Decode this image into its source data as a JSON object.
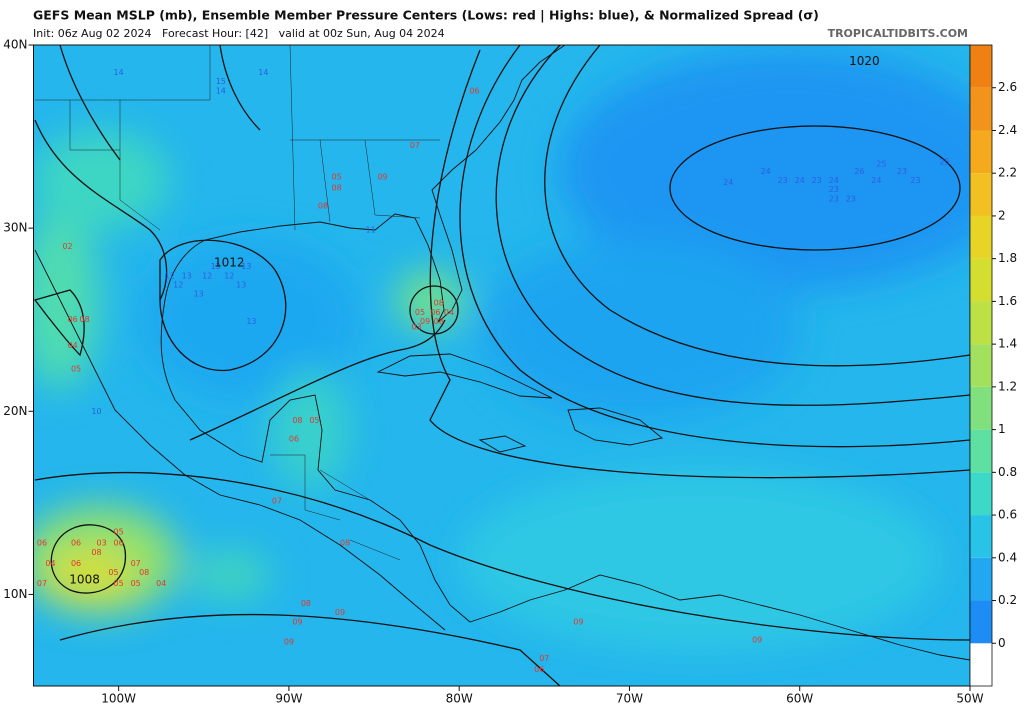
{
  "chart_data": {
    "type": "map",
    "title": "GEFS Mean MSLP (mb), Ensemble Member Pressure Centers (Lows: red | Highs: blue), & Normalized Spread (σ)",
    "subtitle": "Init: 06z Aug 02 2024   Forecast Hour: [42]   valid at 00z Sun, Aug 04 2024",
    "source": "TROPICALTIDBITS.COM",
    "xlim": [
      -105,
      -50
    ],
    "ylim": [
      5,
      40
    ],
    "xticks": [
      {
        "value": -100,
        "label": "100W"
      },
      {
        "value": -90,
        "label": "90W"
      },
      {
        "value": -80,
        "label": "80W"
      },
      {
        "value": -70,
        "label": "70W"
      },
      {
        "value": -60,
        "label": "60W"
      },
      {
        "value": -50,
        "label": "50W"
      }
    ],
    "yticks": [
      {
        "value": 10,
        "label": "10N"
      },
      {
        "value": 20,
        "label": "20N"
      },
      {
        "value": 30,
        "label": "30N"
      },
      {
        "value": 40,
        "label": "40N"
      }
    ],
    "colorbar": {
      "lim": [
        -0.2,
        2.8
      ],
      "ticks": [
        0,
        0.2,
        0.4,
        0.6,
        0.8,
        1,
        1.2,
        1.4,
        1.6,
        1.8,
        2,
        2.2,
        2.4,
        2.6
      ],
      "colors": [
        "#ffffff",
        "#1e8cf5",
        "#22a8f0",
        "#28c4e8",
        "#3cd8c8",
        "#5ee0a2",
        "#80e07e",
        "#a2e05e",
        "#bde044",
        "#d4de2e",
        "#e8d424",
        "#f2c020",
        "#f5aa1e",
        "#f3941a",
        "#ef8012"
      ]
    },
    "low_color": "#e2382c",
    "high_color": "#2c5fe0",
    "isobar_labels": [
      {
        "label": "1020",
        "lon": -56.2,
        "lat": 39.1
      },
      {
        "label": "1012",
        "lon": -93.5,
        "lat": 28.1
      },
      {
        "label": "1008",
        "lon": -102.0,
        "lat": 10.8
      }
    ],
    "centers": [
      {
        "label": "14",
        "kind": "high",
        "lon": -100.0,
        "lat": 38.5
      },
      {
        "label": "15",
        "kind": "high",
        "lon": -94.0,
        "lat": 38.0
      },
      {
        "label": "14",
        "kind": "high",
        "lon": -94.0,
        "lat": 37.5
      },
      {
        "label": "14",
        "kind": "high",
        "lon": -91.5,
        "lat": 38.5
      },
      {
        "label": "13",
        "kind": "high",
        "lon": -94.3,
        "lat": 27.9
      },
      {
        "label": "13",
        "kind": "high",
        "lon": -92.5,
        "lat": 27.9
      },
      {
        "label": "12",
        "kind": "high",
        "lon": -97.0,
        "lat": 27.4
      },
      {
        "label": "13",
        "kind": "high",
        "lon": -96.0,
        "lat": 27.4
      },
      {
        "label": "12",
        "kind": "high",
        "lon": -94.8,
        "lat": 27.4
      },
      {
        "label": "12",
        "kind": "high",
        "lon": -93.5,
        "lat": 27.4
      },
      {
        "label": "12",
        "kind": "high",
        "lon": -96.5,
        "lat": 26.9
      },
      {
        "label": "13",
        "kind": "high",
        "lon": -92.8,
        "lat": 26.9
      },
      {
        "label": "13",
        "kind": "high",
        "lon": -95.3,
        "lat": 26.4
      },
      {
        "label": "13",
        "kind": "high",
        "lon": -92.2,
        "lat": 24.9
      },
      {
        "label": "11",
        "kind": "high",
        "lon": -85.2,
        "lat": 29.9
      },
      {
        "label": "10",
        "kind": "high",
        "lon": -101.3,
        "lat": 20.0
      },
      {
        "label": "24",
        "kind": "high",
        "lon": -64.2,
        "lat": 32.5
      },
      {
        "label": "24",
        "kind": "high",
        "lon": -62.0,
        "lat": 33.1
      },
      {
        "label": "23",
        "kind": "high",
        "lon": -61.0,
        "lat": 32.6
      },
      {
        "label": "24",
        "kind": "high",
        "lon": -60.0,
        "lat": 32.6
      },
      {
        "label": "23",
        "kind": "high",
        "lon": -59.0,
        "lat": 32.6
      },
      {
        "label": "24",
        "kind": "high",
        "lon": -58.0,
        "lat": 32.6
      },
      {
        "label": "23",
        "kind": "high",
        "lon": -58.0,
        "lat": 32.1
      },
      {
        "label": "26",
        "kind": "high",
        "lon": -56.5,
        "lat": 33.1
      },
      {
        "label": "25",
        "kind": "high",
        "lon": -55.2,
        "lat": 33.5
      },
      {
        "label": "23",
        "kind": "high",
        "lon": -54.0,
        "lat": 33.1
      },
      {
        "label": "25",
        "kind": "high",
        "lon": -51.5,
        "lat": 33.6
      },
      {
        "label": "24",
        "kind": "high",
        "lon": -55.5,
        "lat": 32.6
      },
      {
        "label": "23",
        "kind": "high",
        "lon": -57.0,
        "lat": 31.6
      },
      {
        "label": "23",
        "kind": "high",
        "lon": -58.0,
        "lat": 31.6
      },
      {
        "label": "23",
        "kind": "high",
        "lon": -53.2,
        "lat": 32.6
      },
      {
        "label": "06",
        "kind": "low",
        "lon": -79.1,
        "lat": 37.5
      },
      {
        "label": "07",
        "kind": "low",
        "lon": -82.6,
        "lat": 34.5
      },
      {
        "label": "09",
        "kind": "low",
        "lon": -84.5,
        "lat": 32.8
      },
      {
        "label": "05",
        "kind": "low",
        "lon": -87.2,
        "lat": 32.8
      },
      {
        "label": "08",
        "kind": "low",
        "lon": -87.2,
        "lat": 32.2
      },
      {
        "label": "08",
        "kind": "low",
        "lon": -88.0,
        "lat": 31.2
      },
      {
        "label": "08",
        "kind": "low",
        "lon": -81.2,
        "lat": 25.9
      },
      {
        "label": "05",
        "kind": "low",
        "lon": -82.3,
        "lat": 25.4
      },
      {
        "label": "06",
        "kind": "low",
        "lon": -81.4,
        "lat": 25.4
      },
      {
        "label": "04",
        "kind": "low",
        "lon": -80.6,
        "lat": 25.4
      },
      {
        "label": "09",
        "kind": "low",
        "lon": -82.0,
        "lat": 24.9
      },
      {
        "label": "08",
        "kind": "low",
        "lon": -81.2,
        "lat": 24.9
      },
      {
        "label": "03",
        "kind": "low",
        "lon": -82.5,
        "lat": 24.6
      },
      {
        "label": "02",
        "kind": "low",
        "lon": -103.0,
        "lat": 29.0
      },
      {
        "label": "06",
        "kind": "low",
        "lon": -102.7,
        "lat": 25.0
      },
      {
        "label": "08",
        "kind": "low",
        "lon": -102.0,
        "lat": 25.0
      },
      {
        "label": "04",
        "kind": "low",
        "lon": -102.7,
        "lat": 23.6
      },
      {
        "label": "05",
        "kind": "low",
        "lon": -102.5,
        "lat": 22.3
      },
      {
        "label": "08",
        "kind": "low",
        "lon": -89.5,
        "lat": 19.5
      },
      {
        "label": "05",
        "kind": "low",
        "lon": -88.5,
        "lat": 19.5
      },
      {
        "label": "06",
        "kind": "low",
        "lon": -89.7,
        "lat": 18.5
      },
      {
        "label": "07",
        "kind": "low",
        "lon": -90.7,
        "lat": 15.1
      },
      {
        "label": "08",
        "kind": "low",
        "lon": -86.7,
        "lat": 12.8
      },
      {
        "label": "06",
        "kind": "low",
        "lon": -104.5,
        "lat": 12.8
      },
      {
        "label": "06",
        "kind": "low",
        "lon": -102.5,
        "lat": 12.8
      },
      {
        "label": "03",
        "kind": "low",
        "lon": -101.0,
        "lat": 12.8
      },
      {
        "label": "06",
        "kind": "low",
        "lon": -100.0,
        "lat": 12.8
      },
      {
        "label": "05",
        "kind": "low",
        "lon": -100.0,
        "lat": 13.4
      },
      {
        "label": "08",
        "kind": "low",
        "lon": -101.3,
        "lat": 12.3
      },
      {
        "label": "04",
        "kind": "low",
        "lon": -104.0,
        "lat": 11.7
      },
      {
        "label": "06",
        "kind": "low",
        "lon": -102.5,
        "lat": 11.7
      },
      {
        "label": "07",
        "kind": "low",
        "lon": -99.0,
        "lat": 11.7
      },
      {
        "label": "05",
        "kind": "low",
        "lon": -100.3,
        "lat": 11.2
      },
      {
        "label": "08",
        "kind": "low",
        "lon": -98.5,
        "lat": 11.2
      },
      {
        "label": "07",
        "kind": "low",
        "lon": -104.5,
        "lat": 10.6
      },
      {
        "label": "05",
        "kind": "low",
        "lon": -100.0,
        "lat": 10.6
      },
      {
        "label": "05",
        "kind": "low",
        "lon": -99.0,
        "lat": 10.6
      },
      {
        "label": "04",
        "kind": "low",
        "lon": -97.5,
        "lat": 10.6
      },
      {
        "label": "08",
        "kind": "low",
        "lon": -89.0,
        "lat": 9.5
      },
      {
        "label": "09",
        "kind": "low",
        "lon": -87.0,
        "lat": 9.0
      },
      {
        "label": "09",
        "kind": "low",
        "lon": -89.5,
        "lat": 8.5
      },
      {
        "label": "09",
        "kind": "low",
        "lon": -90.0,
        "lat": 7.4
      },
      {
        "label": "09",
        "kind": "low",
        "lon": -73.0,
        "lat": 8.5
      },
      {
        "label": "09",
        "kind": "low",
        "lon": -62.5,
        "lat": 7.5
      },
      {
        "label": "07",
        "kind": "low",
        "lon": -75.0,
        "lat": 6.5
      },
      {
        "label": "06",
        "kind": "low",
        "lon": -75.3,
        "lat": 5.9
      }
    ]
  }
}
